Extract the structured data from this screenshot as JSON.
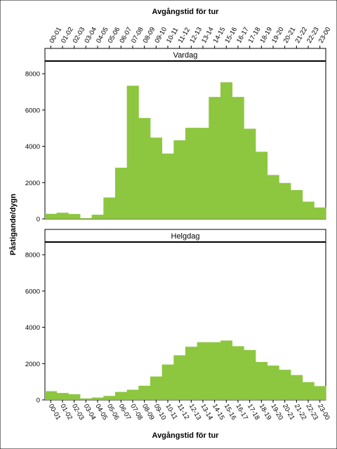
{
  "chart_data": {
    "type": "bar",
    "title": "",
    "xlabel_top": "Avgångstid för tur",
    "xlabel_bottom": "Avgångstid för tur",
    "ylabel": "Påstigande/dygn",
    "categories": [
      "00-01",
      "01-02",
      "02-03",
      "03-04",
      "04-05",
      "05-06",
      "06-07",
      "07-08",
      "08-09",
      "09-10",
      "10-11",
      "11-12",
      "12-13",
      "13-14",
      "14-15",
      "15-16",
      "16-17",
      "17-18",
      "18-19",
      "19-20",
      "20-21",
      "21-22",
      "22-23",
      "23-00"
    ],
    "ylim": [
      0,
      8700
    ],
    "yticks": [
      0,
      2000,
      4000,
      6000,
      8000
    ],
    "bar_color": "#8dc63f",
    "panels": [
      {
        "name": "Vardag",
        "values": [
          280,
          340,
          270,
          40,
          230,
          1180,
          2820,
          7340,
          5560,
          4480,
          3600,
          4330,
          5020,
          5020,
          6720,
          7530,
          6720,
          4970,
          3700,
          2420,
          1980,
          1590,
          950,
          630
        ]
      },
      {
        "name": "Helgdag",
        "values": [
          480,
          380,
          310,
          80,
          130,
          220,
          440,
          560,
          780,
          1290,
          1950,
          2460,
          2930,
          3180,
          3180,
          3270,
          2960,
          2750,
          2090,
          1890,
          1660,
          1370,
          980,
          760
        ]
      }
    ]
  }
}
